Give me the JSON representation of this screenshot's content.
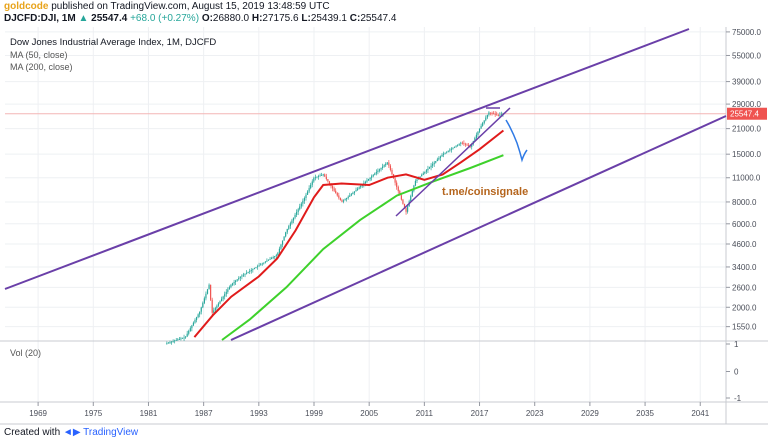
{
  "header": {
    "author": "goldcode",
    "published_text": "published on TradingView.com, August 15, 2019 13:48:59 UTC",
    "symbol": "DJCFD:DJI, 1M",
    "last": "25547.4",
    "change": "+68.0 (+0.27%)",
    "open_label": "O:",
    "open": "26880.0",
    "high_label": "H:",
    "high": "27175.6",
    "low_label": "L:",
    "low": "25439.1",
    "close_label": "C:",
    "close": "25547.4"
  },
  "legend": {
    "title": "Dow Jones Industrial Average Index, 1M, DJCFD",
    "ma1": "MA (50, close)",
    "ma2": "MA (200, close)"
  },
  "annotation": {
    "text": "t.me/coinsignale",
    "color": "#b5651d"
  },
  "volume_pane": {
    "label": "Vol (20)",
    "ticks": [
      "1",
      "0",
      "-1"
    ]
  },
  "footer": {
    "created_with": "Created with",
    "brand": "TradingView"
  },
  "colors": {
    "channel": "#6a3fa8",
    "ma50": "#e01b1b",
    "ma200": "#3ed12b",
    "candle_up": "#26a69a",
    "candle_down": "#ef5350",
    "last_price": "#ef5350",
    "projection": "#2f7ae5"
  },
  "chart_data": {
    "type": "line",
    "title": "Dow Jones Industrial Average Index, 1M, DJCFD",
    "scale": "log",
    "x_ticks": [
      "1969",
      "1975",
      "1981",
      "1987",
      "1993",
      "1999",
      "2005",
      "2011",
      "2017",
      "2023",
      "2029",
      "2035",
      "2041"
    ],
    "y_ticks": [
      75000,
      55000,
      39000,
      29000,
      21000,
      15000,
      11000,
      8000,
      6000,
      4600,
      3400,
      2600,
      2000,
      1550
    ],
    "ylim": [
      1300,
      80000
    ],
    "last_price": 25547.4,
    "series": [
      {
        "name": "DJI",
        "points": [
          [
            1983,
            1250
          ],
          [
            1985,
            1350
          ],
          [
            1986.6,
            1900
          ],
          [
            1987.6,
            2700
          ],
          [
            1987.9,
            1850
          ],
          [
            1990,
            2700
          ],
          [
            1991,
            3000
          ],
          [
            1995,
            4000
          ],
          [
            1996,
            5500
          ],
          [
            1998,
            8500
          ],
          [
            1999,
            11000
          ],
          [
            2000,
            11500
          ],
          [
            2002,
            8000
          ],
          [
            2003,
            8800
          ],
          [
            2007,
            13500
          ],
          [
            2009,
            7000
          ],
          [
            2010,
            10500
          ],
          [
            2013,
            15000
          ],
          [
            2015,
            17500
          ],
          [
            2016,
            16500
          ],
          [
            2017,
            21000
          ],
          [
            2018,
            26000
          ],
          [
            2019,
            25000
          ],
          [
            2019.6,
            25547
          ]
        ]
      },
      {
        "name": "MA (50, close)",
        "points": [
          [
            1986,
            1350
          ],
          [
            1988,
            1800
          ],
          [
            1990,
            2300
          ],
          [
            1993,
            3000
          ],
          [
            1995,
            3800
          ],
          [
            1997,
            5500
          ],
          [
            1999,
            8500
          ],
          [
            2000,
            10000
          ],
          [
            2002,
            10200
          ],
          [
            2005,
            10000
          ],
          [
            2007,
            11000
          ],
          [
            2009,
            11500
          ],
          [
            2011,
            10700
          ],
          [
            2013,
            11500
          ],
          [
            2015,
            13500
          ],
          [
            2017,
            16000
          ],
          [
            2019.6,
            20500
          ]
        ]
      },
      {
        "name": "MA (200, close)",
        "points": [
          [
            1989,
            1300
          ],
          [
            1992,
            1700
          ],
          [
            1996,
            2600
          ],
          [
            2000,
            4300
          ],
          [
            2004,
            6300
          ],
          [
            2008,
            8700
          ],
          [
            2012,
            10500
          ],
          [
            2016,
            12500
          ],
          [
            2019.6,
            14800
          ]
        ]
      }
    ]
  }
}
